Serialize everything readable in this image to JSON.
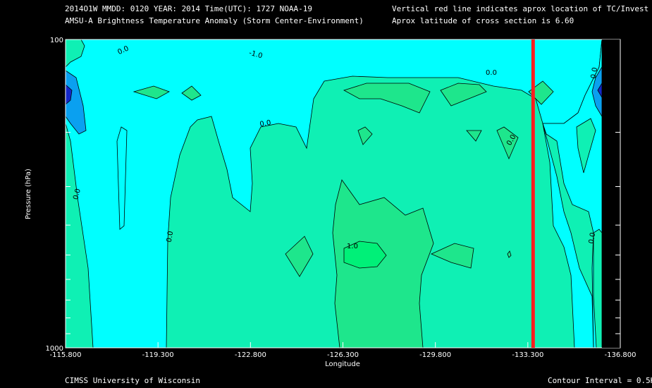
{
  "header": {
    "line1_left": "2014O1W  MMDD: 0120 YEAR: 2014 Time(UTC): 1727 NOAA-19",
    "line2_left": "AMSU-A Brightness Temperature Anomaly (Storm Center-Environment)",
    "line1_right": "Vertical red line indicates aprox location of TC/Invest",
    "line2_right": "Aprox latitude of cross section is 6.60"
  },
  "footer": {
    "left": "CIMSS University of Wisconsin",
    "right": "Contour Interval = 0.5K"
  },
  "colors": {
    "background": "#000000",
    "level_dark_blue": "#1428c8",
    "level_blue": "#0aa0f0",
    "level_cyan": "#00ffff",
    "level_seafoam": "#0ff0b4",
    "level_green": "#1ee68c",
    "level_bright_green": "#00f078",
    "tc_line": "#ff1e1e"
  },
  "chart_data": {
    "type": "contour",
    "title": "AMSU-A Brightness Temperature Anomaly (Storm Center-Environment)",
    "xlabel": "Longitude",
    "ylabel": "Pressure (hPa)",
    "x_ticks": [
      "-115.800",
      "-119.300",
      "-122.800",
      "-126.300",
      "-129.800",
      "-133.300",
      "-136.800"
    ],
    "y_ticks": [
      "100",
      "1000"
    ],
    "xlim": [
      -115.8,
      -136.8
    ],
    "ylim": [
      1000,
      100
    ],
    "y_scale": "log",
    "contour_interval_K": 0.5,
    "contour_labels": [
      "0.0",
      "-1.0",
      "0.0",
      "0.0",
      "0.0",
      "0.0",
      "0.0",
      "0.0",
      "1.0",
      "0.0"
    ],
    "tc_longitude": -133.5,
    "cross_section_latitude": 6.6,
    "grid": false
  }
}
